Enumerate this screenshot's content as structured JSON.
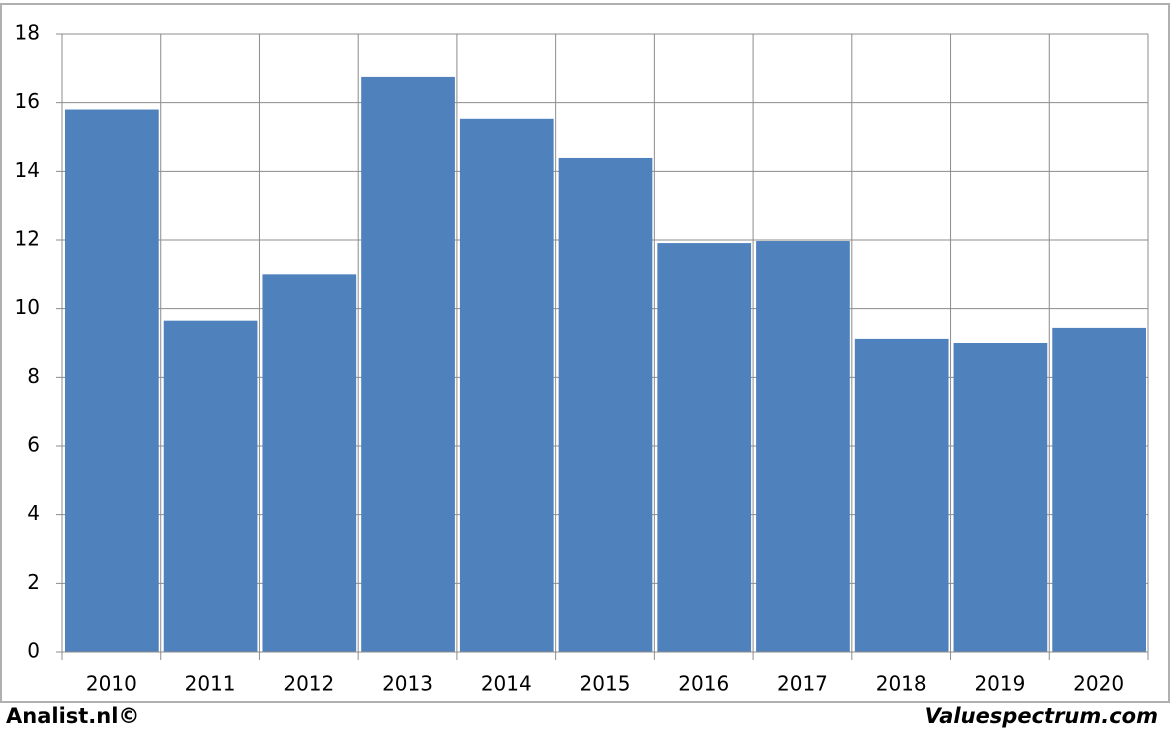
{
  "chart_data": {
    "type": "bar",
    "categories": [
      "2010",
      "2011",
      "2012",
      "2013",
      "2014",
      "2015",
      "2016",
      "2017",
      "2018",
      "2019",
      "2020"
    ],
    "values": [
      15.8,
      9.65,
      11.0,
      16.75,
      15.53,
      14.39,
      11.91,
      11.97,
      9.12,
      9.0,
      9.44
    ],
    "color": "#4f81bd",
    "ylim": [
      0,
      18
    ],
    "yticks": [
      0,
      2,
      4,
      6,
      8,
      10,
      12,
      14,
      16,
      18
    ],
    "grid": true,
    "annotations": [
      "Analist.nl©",
      "Valuespectrum.com"
    ]
  }
}
